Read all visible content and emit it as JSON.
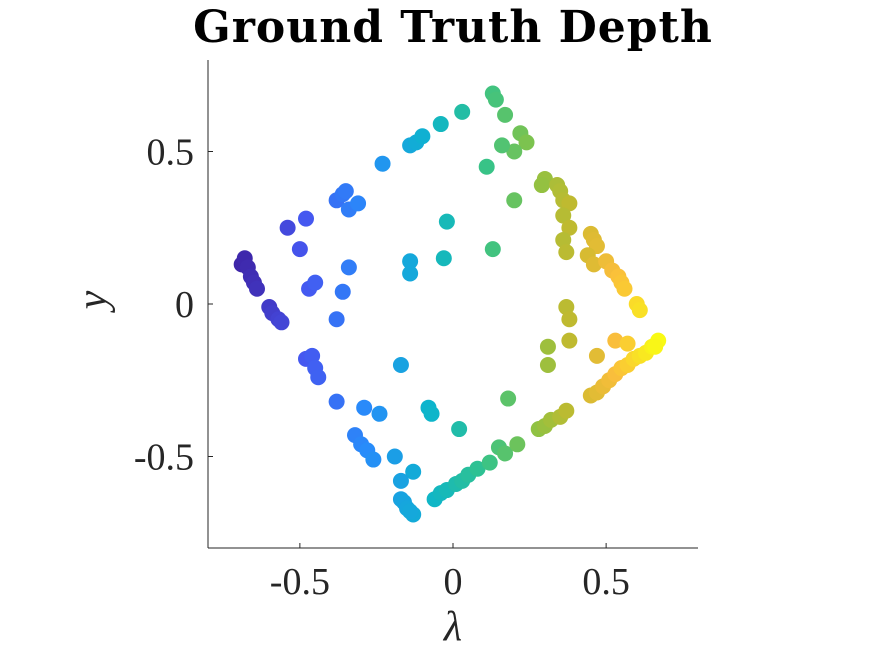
{
  "chart_data": {
    "type": "scatter",
    "title": "Ground Truth Depth",
    "xlabel": "λ",
    "ylabel": "y",
    "xlim": [
      -0.8,
      0.8
    ],
    "ylim": [
      -0.8,
      0.8
    ],
    "xticks": [
      -0.5,
      0,
      0.5
    ],
    "xtick_labels": [
      "-0.5",
      "0",
      "0.5"
    ],
    "yticks": [
      -0.5,
      0,
      0.5
    ],
    "ytick_labels": [
      "-0.5",
      "0",
      "0.5"
    ],
    "grid": false,
    "legend": "none",
    "colormap": "parula",
    "color_encodes": "depth",
    "points": [
      [
        -0.69,
        0.13
      ],
      [
        -0.68,
        0.15
      ],
      [
        -0.67,
        0.12
      ],
      [
        -0.66,
        0.09
      ],
      [
        -0.65,
        0.07
      ],
      [
        -0.64,
        0.05
      ],
      [
        -0.6,
        -0.01
      ],
      [
        -0.59,
        -0.03
      ],
      [
        -0.57,
        -0.05
      ],
      [
        -0.56,
        -0.06
      ],
      [
        -0.54,
        0.25
      ],
      [
        -0.48,
        0.28
      ],
      [
        -0.5,
        0.18
      ],
      [
        -0.47,
        0.05
      ],
      [
        -0.45,
        0.07
      ],
      [
        -0.48,
        -0.18
      ],
      [
        -0.46,
        -0.17
      ],
      [
        -0.45,
        -0.21
      ],
      [
        -0.44,
        -0.24
      ],
      [
        -0.38,
        0.34
      ],
      [
        -0.36,
        0.36
      ],
      [
        -0.35,
        0.37
      ],
      [
        -0.34,
        0.31
      ],
      [
        -0.31,
        0.33
      ],
      [
        -0.34,
        0.12
      ],
      [
        -0.36,
        0.04
      ],
      [
        -0.38,
        -0.05
      ],
      [
        -0.38,
        -0.32
      ],
      [
        -0.32,
        -0.43
      ],
      [
        -0.3,
        -0.46
      ],
      [
        -0.28,
        -0.48
      ],
      [
        -0.26,
        -0.51
      ],
      [
        -0.29,
        -0.34
      ],
      [
        -0.24,
        -0.36
      ],
      [
        -0.23,
        0.46
      ],
      [
        -0.14,
        0.52
      ],
      [
        -0.12,
        0.53
      ],
      [
        -0.1,
        0.55
      ],
      [
        -0.04,
        0.59
      ],
      [
        0.03,
        0.63
      ],
      [
        -0.14,
        0.14
      ],
      [
        -0.14,
        0.1
      ],
      [
        -0.03,
        0.15
      ],
      [
        -0.02,
        0.27
      ],
      [
        -0.17,
        -0.2
      ],
      [
        -0.08,
        -0.34
      ],
      [
        -0.07,
        -0.36
      ],
      [
        0.02,
        -0.41
      ],
      [
        -0.19,
        -0.5
      ],
      [
        -0.13,
        -0.55
      ],
      [
        -0.17,
        -0.58
      ],
      [
        -0.17,
        -0.64
      ],
      [
        -0.16,
        -0.65
      ],
      [
        -0.15,
        -0.67
      ],
      [
        -0.13,
        -0.69
      ],
      [
        -0.14,
        -0.68
      ],
      [
        -0.06,
        -0.64
      ],
      [
        -0.04,
        -0.62
      ],
      [
        -0.02,
        -0.61
      ],
      [
        0.01,
        -0.59
      ],
      [
        0.03,
        -0.58
      ],
      [
        0.05,
        -0.56
      ],
      [
        0.08,
        -0.54
      ],
      [
        0.12,
        -0.52
      ],
      [
        0.15,
        -0.47
      ],
      [
        0.17,
        -0.49
      ],
      [
        0.21,
        -0.46
      ],
      [
        0.18,
        -0.31
      ],
      [
        0.13,
        0.69
      ],
      [
        0.14,
        0.67
      ],
      [
        0.17,
        0.62
      ],
      [
        0.22,
        0.56
      ],
      [
        0.24,
        0.53
      ],
      [
        0.2,
        0.5
      ],
      [
        0.16,
        0.52
      ],
      [
        0.11,
        0.45
      ],
      [
        0.13,
        0.18
      ],
      [
        0.2,
        0.34
      ],
      [
        0.28,
        -0.41
      ],
      [
        0.3,
        -0.4
      ],
      [
        0.32,
        -0.38
      ],
      [
        0.35,
        -0.37
      ],
      [
        0.37,
        -0.35
      ],
      [
        0.3,
        0.41
      ],
      [
        0.29,
        0.39
      ],
      [
        0.34,
        0.39
      ],
      [
        0.35,
        0.37
      ],
      [
        0.36,
        0.34
      ],
      [
        0.38,
        0.33
      ],
      [
        0.36,
        0.29
      ],
      [
        0.38,
        0.25
      ],
      [
        0.36,
        0.21
      ],
      [
        0.37,
        0.17
      ],
      [
        0.37,
        -0.01
      ],
      [
        0.38,
        -0.05
      ],
      [
        0.38,
        -0.12
      ],
      [
        0.31,
        -0.14
      ],
      [
        0.31,
        -0.2
      ],
      [
        0.45,
        0.23
      ],
      [
        0.46,
        0.21
      ],
      [
        0.47,
        0.19
      ],
      [
        0.44,
        0.16
      ],
      [
        0.46,
        0.13
      ],
      [
        0.5,
        0.14
      ],
      [
        0.52,
        0.11
      ],
      [
        0.54,
        0.09
      ],
      [
        0.55,
        0.07
      ],
      [
        0.56,
        0.05
      ],
      [
        0.6,
        0.0
      ],
      [
        0.61,
        -0.02
      ],
      [
        0.53,
        -0.12
      ],
      [
        0.57,
        -0.13
      ],
      [
        0.45,
        -0.3
      ],
      [
        0.47,
        -0.29
      ],
      [
        0.49,
        -0.27
      ],
      [
        0.51,
        -0.25
      ],
      [
        0.53,
        -0.23
      ],
      [
        0.55,
        -0.21
      ],
      [
        0.57,
        -0.2
      ],
      [
        0.59,
        -0.18
      ],
      [
        0.61,
        -0.17
      ],
      [
        0.63,
        -0.16
      ],
      [
        0.65,
        -0.14
      ],
      [
        0.67,
        -0.12
      ],
      [
        0.66,
        -0.14
      ],
      [
        0.47,
        -0.17
      ]
    ]
  }
}
